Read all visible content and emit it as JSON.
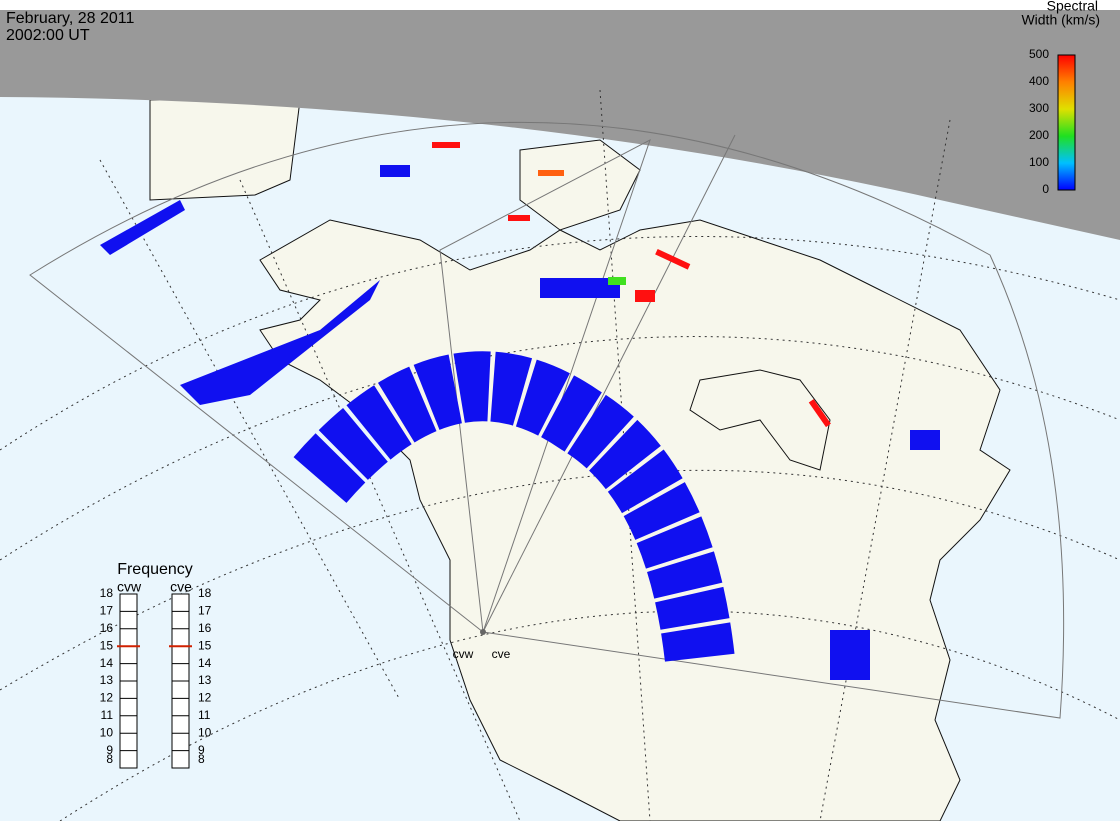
{
  "header": {
    "date": "February, 28 2011",
    "time": "2002:00 UT"
  },
  "colorbar": {
    "title_lines": [
      "Spectral",
      "Width (km/s)"
    ],
    "lim": [
      0,
      500
    ],
    "ticks": [
      0,
      100,
      200,
      300,
      400,
      500
    ]
  },
  "frequency": {
    "title": "Frequency",
    "lim": [
      8,
      18
    ],
    "ticks": [
      8,
      9,
      10,
      11,
      12,
      13,
      14,
      15,
      16,
      17,
      18
    ],
    "radars": [
      {
        "name": "cvw",
        "value": 15
      },
      {
        "name": "cve",
        "value": 15
      }
    ]
  },
  "map_labels": [
    "cvw",
    "cve"
  ]
}
